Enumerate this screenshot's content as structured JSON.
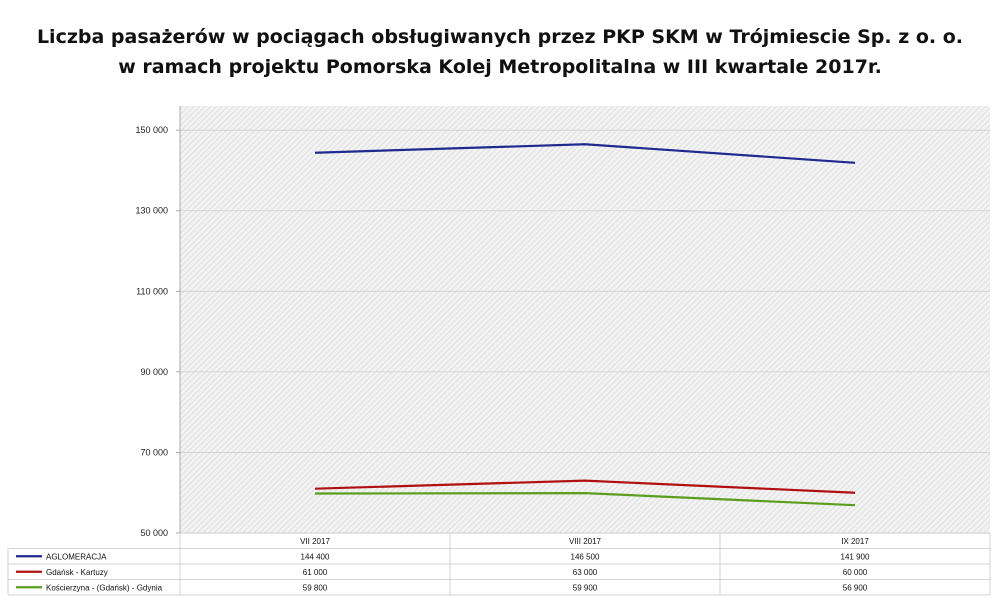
{
  "chart_data": {
    "type": "line",
    "title_lines": [
      "Liczba pasażerów w pociągach obsługiwanych  przez PKP SKM w Trójmiescie Sp. z o. o.",
      "w ramach projektu Pomorska Kolej Metropolitalna w III kwartale 2017r."
    ],
    "categories": [
      "VII 2017",
      "VIII 2017",
      "IX 2017"
    ],
    "series": [
      {
        "name": "AGLOMERACJA",
        "values": [
          144400,
          146500,
          141900
        ],
        "labels": [
          "144 400",
          "146 500",
          "141 900"
        ],
        "color": "#1f2a8f"
      },
      {
        "name": "Gdańsk - Kartuzy",
        "values": [
          61000,
          63000,
          60000
        ],
        "labels": [
          "61 000",
          "63 000",
          "60 000"
        ],
        "color": "#b01010"
      },
      {
        "name": "Kościerzyna - (Gdańsk) - Gdynia",
        "values": [
          59800,
          59900,
          56900
        ],
        "labels": [
          "59 800",
          "59 900",
          "56 900"
        ],
        "color": "#5a9e1e"
      }
    ],
    "y_ticks": [
      50000,
      70000,
      90000,
      110000,
      130000,
      150000
    ],
    "y_tick_labels": [
      "50 000",
      "70 000",
      "90 000",
      "110 000",
      "130 000",
      "150 000"
    ],
    "ylim": [
      50000,
      156000
    ],
    "plot_background": "hatched-gray",
    "legend": "data-table-below"
  }
}
